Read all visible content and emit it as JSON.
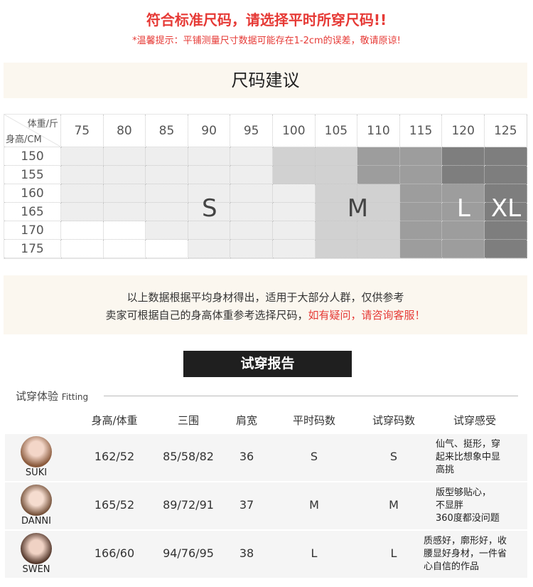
{
  "header": {
    "title": "符合标准尺码，请选择平时所穿尺码!!",
    "tip": "*温馨提示：平铺测量尺寸数据可能存在1-2cm的误差，敬请原谅!"
  },
  "size_section": {
    "title": "尺码建议"
  },
  "size_chart": {
    "corner_top": "体重/斤",
    "corner_bottom": "身高/CM",
    "weights": [
      "75",
      "80",
      "85",
      "90",
      "95",
      "100",
      "105",
      "110",
      "115",
      "120",
      "125"
    ],
    "heights": [
      "150",
      "155",
      "160",
      "165",
      "170",
      "175"
    ],
    "grid": [
      [
        "S",
        "S",
        "S",
        "S",
        "S",
        "M",
        "M",
        "L",
        "L",
        "XL",
        "XL"
      ],
      [
        "S",
        "S",
        "S",
        "S",
        "S",
        "M",
        "M",
        "L",
        "L",
        "XL",
        "XL"
      ],
      [
        "S",
        "S",
        "S",
        "S",
        "S",
        "S",
        "M",
        "M",
        "L",
        "L",
        "XL"
      ],
      [
        "S",
        "S",
        "S",
        "S",
        "S",
        "S",
        "M",
        "M",
        "L",
        "L",
        "XL"
      ],
      [
        "",
        "",
        "S",
        "S",
        "S",
        "S",
        "M",
        "M",
        "L",
        "L",
        "XL"
      ],
      [
        "",
        "",
        "",
        "S",
        "S",
        "S",
        "M",
        "M",
        "L",
        "L",
        "XL"
      ]
    ],
    "size_labels": [
      "S",
      "M",
      "L",
      "XL"
    ],
    "colors": {
      "S": "#eeeeee",
      "M": "#d1d1d1",
      "L": "#9d9d9d",
      "XL": "#7e7e7e",
      "": "#ffffff"
    }
  },
  "note": {
    "line1": "以上数据根据平均身材得出，适用于大部分人群，仅供参考",
    "line2": "卖家可根据自己的身高体重参考选择尺码，",
    "line2_red": "如有疑问，请咨询客服！"
  },
  "report": {
    "title": "试穿报告",
    "section": "试穿体验",
    "section_en": "Fitting",
    "headers": [
      "身高/体重",
      "三围",
      "肩宽",
      "平时码数",
      "试穿码数",
      "试穿感受"
    ],
    "rows": [
      {
        "name": "SUKI",
        "hw": "162/52",
        "bwh": "85/58/82",
        "shoulder": "36",
        "usual": "S",
        "tried": "S",
        "feel": [
          "仙气、挺形，穿",
          "起来比想象中显",
          "高挑"
        ]
      },
      {
        "name": "DANNI",
        "hw": "165/52",
        "bwh": "89/72/91",
        "shoulder": "37",
        "usual": "M",
        "tried": "M",
        "feel": [
          "版型够贴心，",
          "不显胖",
          "360度都没问题"
        ]
      },
      {
        "name": "SWEN",
        "hw": "166/60",
        "bwh": "94/76/95",
        "shoulder": "38",
        "usual": "L",
        "tried": "L",
        "feel": [
          "质感好，廓形好，收",
          "腰显好身材，一件省",
          "心自信的作品"
        ]
      }
    ]
  }
}
